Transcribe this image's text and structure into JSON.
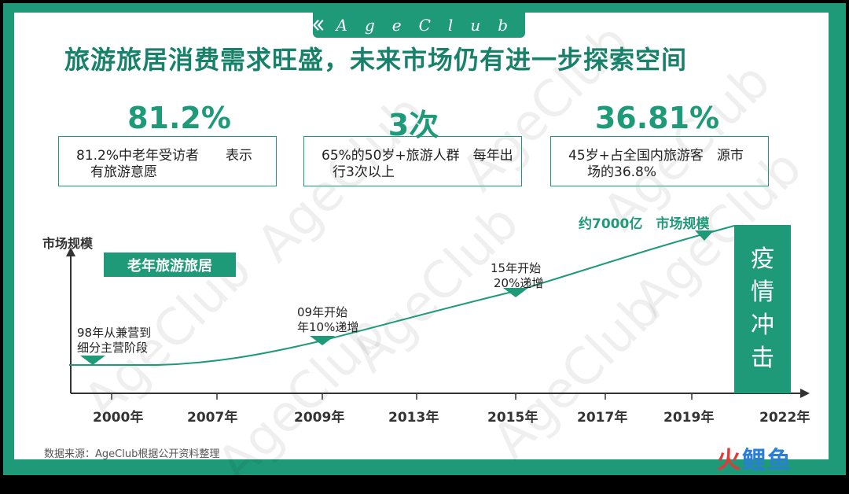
{
  "brand": {
    "logo_text": "AgeClub"
  },
  "title": "旅游旅居消费需求旺盛，未来市场仍有进一步探索空间",
  "stats": [
    {
      "value": "81.2%",
      "desc_line1": "81.2%中老年受访者　　表示",
      "desc_line2": "有旅游意愿"
    },
    {
      "value": "3次",
      "desc_line1": "65%的50岁+旅游人群　每年出",
      "desc_line2": "行3次以上"
    },
    {
      "value": "36.81%",
      "desc_line1": "45岁+占全国内旅游客　源市",
      "desc_line2": "场的36.8%"
    }
  ],
  "chart": {
    "y_axis_title": "市场规模",
    "segment_tag": "老年旅游旅居",
    "years": [
      "2000年",
      "2007年",
      "2009年",
      "2013年",
      "2015年",
      "2017年",
      "2019年",
      "2022年"
    ],
    "milestones": [
      {
        "line1": "98年从兼营到",
        "line2": "细分主营阶段"
      },
      {
        "line1": "09年开始",
        "line2": "年10%递增"
      },
      {
        "line1": "15年开始",
        "line2": "20%递增"
      }
    ],
    "market_size": "约7000亿　市场规模",
    "covid_chars": [
      "疫",
      "情",
      "冲",
      "击"
    ]
  },
  "source": "数据来源：AgeClub根据公开资料整理",
  "footer_brand": {
    "part1": "火",
    "part2": "鲤鱼"
  },
  "watermark": "AgeClub",
  "colors": {
    "accent": "#1e9a78",
    "title": "#17816a"
  }
}
